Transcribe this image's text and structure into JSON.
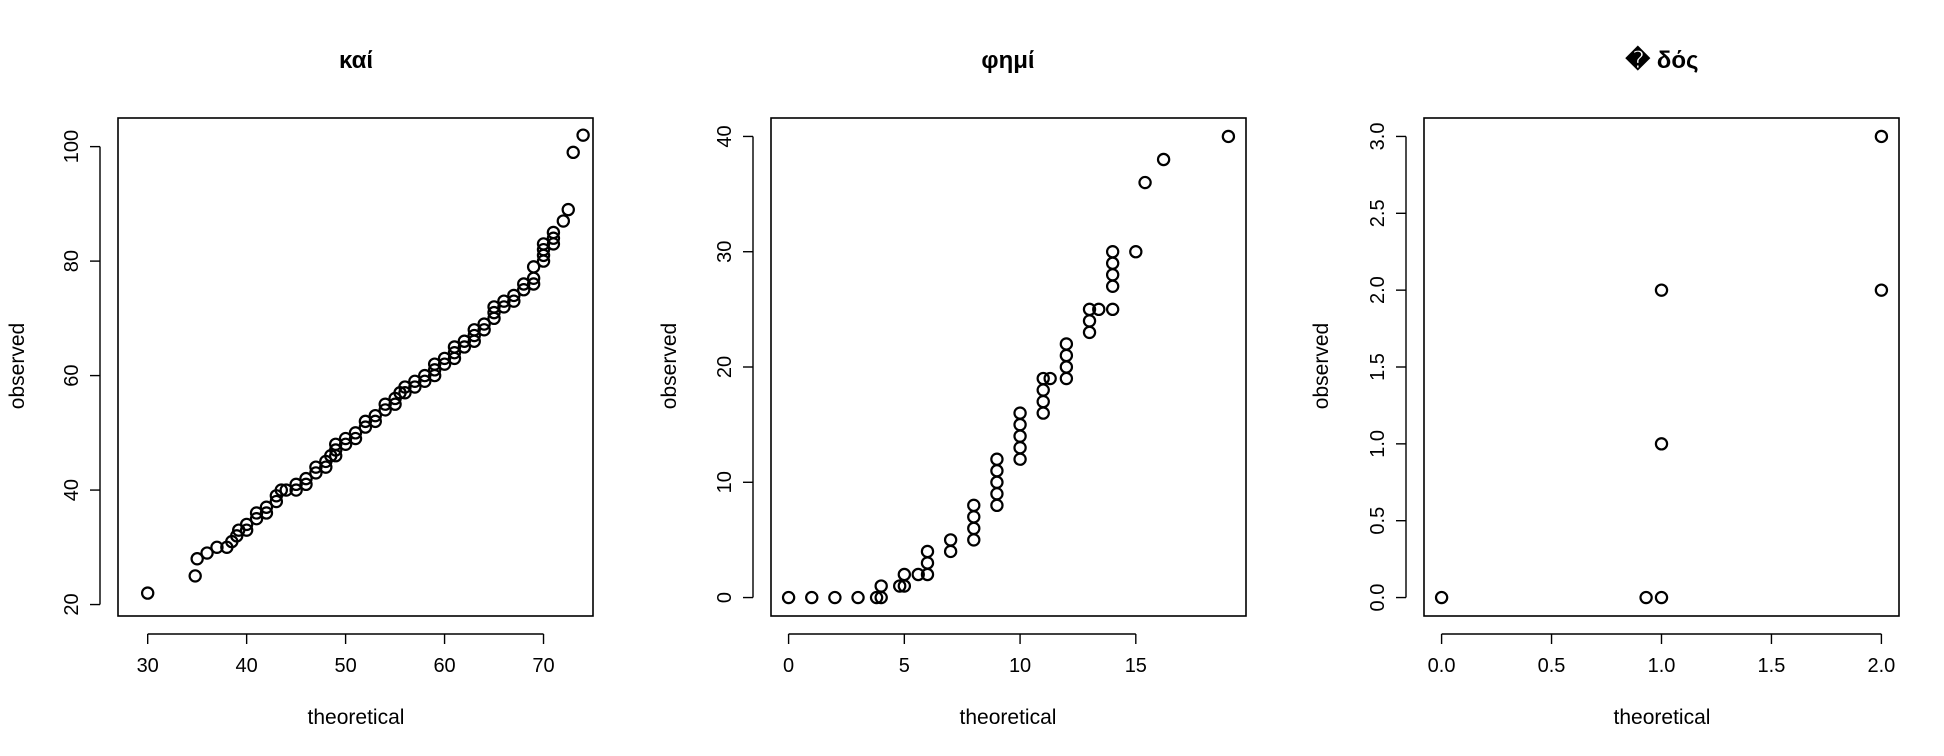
{
  "chart_data": [
    {
      "type": "scatter",
      "title": "καί",
      "xlabel": "theoretical",
      "ylabel": "observed",
      "xlim": [
        27,
        75
      ],
      "ylim": [
        18,
        105
      ],
      "xticks": [
        "30",
        "40",
        "50",
        "60",
        "70"
      ],
      "yticks": [
        "20",
        "40",
        "60",
        "80",
        "100"
      ],
      "points": [
        [
          30,
          22
        ],
        [
          34.8,
          25
        ],
        [
          35,
          28
        ],
        [
          36,
          29
        ],
        [
          37,
          30
        ],
        [
          38,
          30
        ],
        [
          38.5,
          31
        ],
        [
          39,
          32
        ],
        [
          39.2,
          33
        ],
        [
          40,
          33
        ],
        [
          40,
          34
        ],
        [
          41,
          35
        ],
        [
          41,
          36
        ],
        [
          42,
          36
        ],
        [
          42,
          37
        ],
        [
          43,
          38
        ],
        [
          43,
          39
        ],
        [
          43.5,
          40
        ],
        [
          44,
          40
        ],
        [
          45,
          40
        ],
        [
          45,
          41
        ],
        [
          46,
          41
        ],
        [
          46,
          42
        ],
        [
          47,
          43
        ],
        [
          47,
          44
        ],
        [
          48,
          44
        ],
        [
          48,
          45
        ],
        [
          48.5,
          46
        ],
        [
          49,
          46
        ],
        [
          49,
          47
        ],
        [
          49,
          48
        ],
        [
          50,
          48
        ],
        [
          50,
          49
        ],
        [
          51,
          49
        ],
        [
          51,
          50
        ],
        [
          52,
          51
        ],
        [
          52,
          52
        ],
        [
          53,
          52
        ],
        [
          53,
          53
        ],
        [
          54,
          54
        ],
        [
          54,
          55
        ],
        [
          55,
          55
        ],
        [
          55,
          56
        ],
        [
          55.5,
          57
        ],
        [
          56,
          57
        ],
        [
          56,
          58
        ],
        [
          57,
          58
        ],
        [
          57,
          59
        ],
        [
          58,
          59
        ],
        [
          58,
          60
        ],
        [
          59,
          60
        ],
        [
          59,
          61
        ],
        [
          59,
          62
        ],
        [
          60,
          62
        ],
        [
          60,
          63
        ],
        [
          61,
          63
        ],
        [
          61,
          64
        ],
        [
          61,
          65
        ],
        [
          62,
          65
        ],
        [
          62,
          66
        ],
        [
          63,
          66
        ],
        [
          63,
          67
        ],
        [
          63,
          68
        ],
        [
          64,
          68
        ],
        [
          64,
          69
        ],
        [
          65,
          70
        ],
        [
          65,
          71
        ],
        [
          65,
          72
        ],
        [
          66,
          72
        ],
        [
          66,
          73
        ],
        [
          67,
          73
        ],
        [
          67,
          74
        ],
        [
          68,
          75
        ],
        [
          68,
          76
        ],
        [
          69,
          76
        ],
        [
          69,
          77
        ],
        [
          69,
          79
        ],
        [
          70,
          80
        ],
        [
          70,
          81
        ],
        [
          70,
          82
        ],
        [
          70,
          83
        ],
        [
          71,
          83
        ],
        [
          71,
          84
        ],
        [
          71,
          85
        ],
        [
          72,
          87
        ],
        [
          72.5,
          89
        ],
        [
          73,
          99
        ],
        [
          74,
          102
        ]
      ]
    },
    {
      "type": "scatter",
      "title": "φημί",
      "xlabel": "theoretical",
      "ylabel": "observed",
      "xlim": [
        -0.76,
        19.76
      ],
      "ylim": [
        -1.6,
        41.6
      ],
      "xticks": [
        "0",
        "5",
        "10",
        "15"
      ],
      "yticks": [
        "0",
        "10",
        "20",
        "30",
        "40"
      ],
      "points": [
        [
          0,
          0
        ],
        [
          1,
          0
        ],
        [
          2,
          0
        ],
        [
          3,
          0
        ],
        [
          3.8,
          0
        ],
        [
          4,
          0
        ],
        [
          4,
          1
        ],
        [
          4.8,
          1
        ],
        [
          5,
          1
        ],
        [
          5,
          2
        ],
        [
          5.6,
          2
        ],
        [
          6,
          2
        ],
        [
          6,
          3
        ],
        [
          6,
          4
        ],
        [
          7,
          4
        ],
        [
          7,
          5
        ],
        [
          8,
          5
        ],
        [
          8,
          6
        ],
        [
          8,
          7
        ],
        [
          8,
          8
        ],
        [
          9,
          8
        ],
        [
          9,
          9
        ],
        [
          9,
          10
        ],
        [
          9,
          11
        ],
        [
          9,
          12
        ],
        [
          10,
          12
        ],
        [
          10,
          13
        ],
        [
          10,
          14
        ],
        [
          10,
          15
        ],
        [
          10,
          16
        ],
        [
          11,
          16
        ],
        [
          11,
          17
        ],
        [
          11,
          18
        ],
        [
          11,
          19
        ],
        [
          11.3,
          19
        ],
        [
          12,
          19
        ],
        [
          12,
          20
        ],
        [
          12,
          21
        ],
        [
          12,
          22
        ],
        [
          13,
          23
        ],
        [
          13,
          24
        ],
        [
          13,
          25
        ],
        [
          13.4,
          25
        ],
        [
          14,
          25
        ],
        [
          14,
          27
        ],
        [
          14,
          28
        ],
        [
          14,
          29
        ],
        [
          14,
          30
        ],
        [
          15,
          30
        ],
        [
          15.4,
          36
        ],
        [
          16.2,
          38
        ],
        [
          19,
          40
        ]
      ]
    },
    {
      "type": "scatter",
      "title": "� δός",
      "xlabel": "theoretical",
      "ylabel": "observed",
      "xlim": [
        -0.08,
        2.08
      ],
      "ylim": [
        -0.12,
        3.12
      ],
      "xticks": [
        "0.0",
        "0.5",
        "1.0",
        "1.5",
        "2.0"
      ],
      "yticks": [
        "0.0",
        "0.5",
        "1.0",
        "1.5",
        "2.0",
        "2.5",
        "3.0"
      ],
      "points": [
        [
          0,
          0
        ],
        [
          0.93,
          0
        ],
        [
          1,
          0
        ],
        [
          1,
          1
        ],
        [
          1,
          2
        ],
        [
          2,
          2
        ],
        [
          2,
          3
        ]
      ]
    }
  ]
}
